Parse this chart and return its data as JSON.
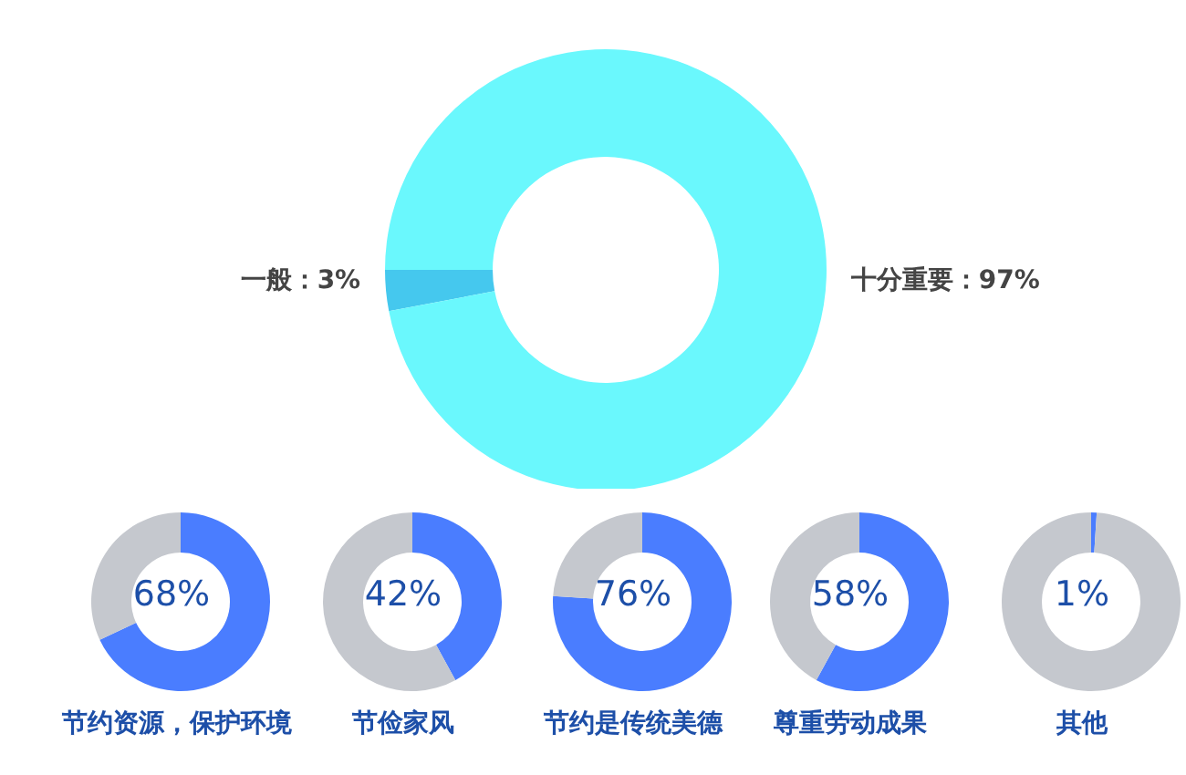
{
  "chart_data": [
    {
      "type": "donut",
      "categories": [
        "一般",
        "十分重要"
      ],
      "values": [
        3,
        97
      ],
      "colors": [
        "#45c8ee",
        "#6af8fd"
      ],
      "value_labels": [
        "：3%",
        "：97%"
      ]
    },
    {
      "type": "donut",
      "title": "节约资源，保护环境",
      "categories": [
        null,
        null
      ],
      "values": [
        68,
        32
      ],
      "colors": [
        "#4a7dff",
        "#c5c8ce"
      ],
      "annotations": [
        "68%"
      ]
    },
    {
      "type": "donut",
      "title": "节俭家风",
      "categories": [
        null,
        null
      ],
      "values": [
        42,
        58
      ],
      "colors": [
        "#4a7dff",
        "#c5c8ce"
      ],
      "annotations": [
        "42%"
      ]
    },
    {
      "type": "donut",
      "title": "节约是传统美德",
      "categories": [
        null,
        null
      ],
      "values": [
        76,
        24
      ],
      "colors": [
        "#4a7dff",
        "#c5c8ce"
      ],
      "annotations": [
        "76%"
      ]
    },
    {
      "type": "donut",
      "title": "尊重劳动成果",
      "categories": [
        null,
        null
      ],
      "values": [
        58,
        42
      ],
      "colors": [
        "#4a7dff",
        "#c5c8ce"
      ],
      "annotations": [
        "58%"
      ]
    },
    {
      "type": "donut",
      "title": "其他",
      "categories": [
        null,
        null
      ],
      "values": [
        1,
        99
      ],
      "colors": [
        "#4a7dff",
        "#c5c8ce"
      ],
      "annotations": [
        "1%"
      ]
    }
  ]
}
